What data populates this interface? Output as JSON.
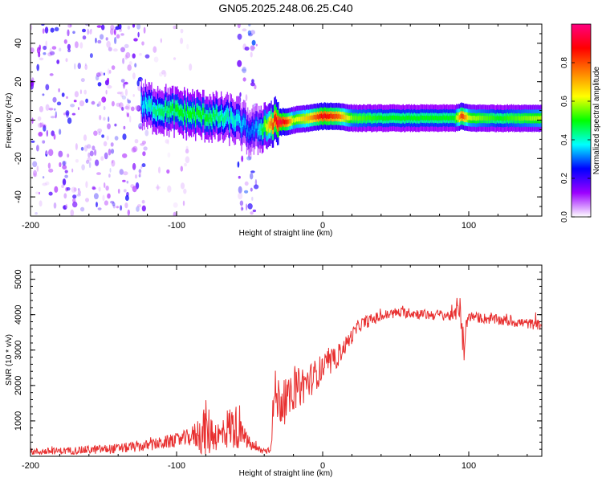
{
  "chart_data": [
    {
      "type": "heatmap",
      "title": "GN05.2025.248.06.25.C40",
      "xlabel": "Height of straight line (km)",
      "ylabel": "Frequency (Hz)",
      "xlim": [
        -200,
        150
      ],
      "ylim": [
        -50,
        50
      ],
      "x_ticks": [
        -200,
        -100,
        0,
        100
      ],
      "x_tick_labels": [
        "-200",
        "-100",
        "0",
        "100"
      ],
      "y_ticks": [
        -40,
        -20,
        0,
        20,
        40
      ],
      "y_tick_labels": [
        "-40",
        "-20",
        "0",
        "20",
        "40"
      ],
      "colorbar": {
        "label": "Normalized spectral amplitude",
        "range": [
          0,
          1
        ],
        "ticks": [
          0.0,
          0.2,
          0.4,
          0.6,
          0.8
        ],
        "tick_labels": [
          "0.0",
          "0.2",
          "0.4",
          "0.6",
          "0.8"
        ],
        "colors": [
          "#ffffff",
          "#9c00ff",
          "#0000ff",
          "#00ffff",
          "#00ff00",
          "#ffff00",
          "#ff8000",
          "#ff0000",
          "#ff0080"
        ]
      },
      "ridge": {
        "name": "dominant frequency band",
        "x": [
          -125,
          -115,
          -100,
          -90,
          -80,
          -70,
          -60,
          -55,
          -50,
          -45,
          -40,
          -35,
          -30,
          -25,
          -20,
          -10,
          0,
          10,
          20,
          40,
          60,
          80,
          90,
          95,
          100,
          120,
          150
        ],
        "y": [
          8,
          6,
          4,
          3,
          2,
          1,
          0,
          -3,
          -6,
          -5,
          -3,
          -2,
          -1,
          -1,
          0,
          1,
          2,
          2,
          1,
          1,
          1,
          1,
          1,
          2,
          1,
          1,
          1
        ],
        "amplitude": [
          0.35,
          0.45,
          0.5,
          0.5,
          0.5,
          0.45,
          0.4,
          0.35,
          0.3,
          0.35,
          0.55,
          0.8,
          0.95,
          0.85,
          0.6,
          0.7,
          0.9,
          0.8,
          0.55,
          0.5,
          0.5,
          0.5,
          0.5,
          0.85,
          0.6,
          0.5,
          0.6
        ]
      },
      "noise_regions": [
        {
          "x_range": [
            -200,
            -120
          ],
          "y_range": [
            -50,
            50
          ],
          "amplitude": 0.1
        },
        {
          "x_range": [
            -115,
            -90
          ],
          "y_range": [
            -50,
            50
          ],
          "amplitude": 0.04
        },
        {
          "x_range": [
            -58,
            -45
          ],
          "y_range": [
            -50,
            50
          ],
          "amplitude": 0.12
        }
      ]
    },
    {
      "type": "line",
      "xlabel": "Height of straight line (km)",
      "ylabel": "SNR (10 * v/v)",
      "xlim": [
        -200,
        150
      ],
      "ylim": [
        0,
        5400
      ],
      "x_ticks": [
        -200,
        -100,
        0,
        100
      ],
      "x_tick_labels": [
        "-200",
        "-100",
        "0",
        "100"
      ],
      "y_ticks": [
        1000,
        2000,
        3000,
        4000,
        5000
      ],
      "y_tick_labels": [
        "1000",
        "2000",
        "3000",
        "4000",
        "5000"
      ],
      "series": [
        {
          "name": "SNR",
          "color": "#e83030",
          "x": [
            -200,
            -180,
            -160,
            -140,
            -120,
            -110,
            -100,
            -90,
            -85,
            -80,
            -75,
            -70,
            -65,
            -60,
            -55,
            -50,
            -45,
            -40,
            -36,
            -33,
            -30,
            -25,
            -20,
            -15,
            -10,
            -5,
            0,
            5,
            10,
            15,
            20,
            25,
            30,
            40,
            50,
            60,
            70,
            80,
            90,
            94,
            96,
            97,
            98,
            100,
            110,
            120,
            130,
            140,
            150
          ],
          "y": [
            120,
            150,
            180,
            220,
            300,
            380,
            450,
            550,
            650,
            700,
            650,
            550,
            800,
            850,
            600,
            350,
            200,
            150,
            200,
            1700,
            1600,
            1500,
            1800,
            2000,
            2100,
            2300,
            2500,
            2600,
            2800,
            3100,
            3400,
            3700,
            3800,
            3950,
            4050,
            4050,
            4000,
            4000,
            3950,
            4400,
            3200,
            2900,
            3700,
            3950,
            3900,
            3850,
            3800,
            3750,
            3700
          ],
          "noise_amplitude": [
            100,
            100,
            120,
            140,
            160,
            180,
            200,
            260,
            500,
            900,
            500,
            400,
            600,
            700,
            300,
            200,
            120,
            100,
            120,
            800,
            700,
            600,
            500,
            600,
            500,
            450,
            400,
            350,
            300,
            250,
            220,
            200,
            180,
            160,
            150,
            150,
            150,
            150,
            150,
            500,
            600,
            300,
            200,
            150,
            150,
            150,
            150,
            150,
            150
          ]
        }
      ]
    }
  ]
}
